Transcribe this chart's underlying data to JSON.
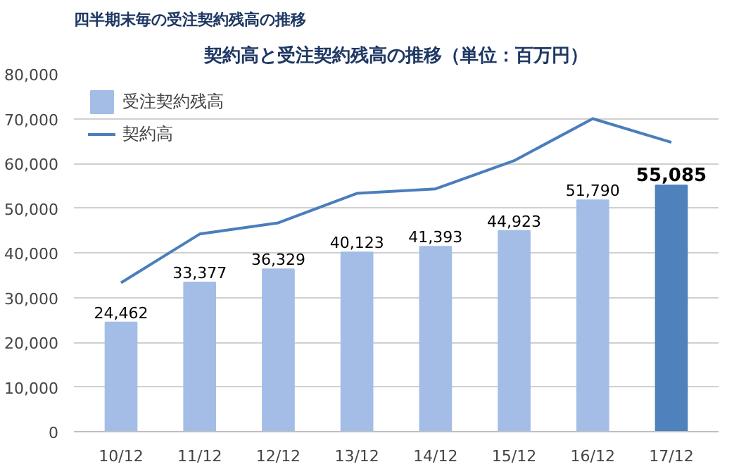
{
  "chart_data": {
    "type": "bar",
    "title": "四半期末毎の受注契約残高の推移",
    "subtitle": "契約高と受注契約残高の推移（単位：百万円）",
    "categories": [
      "10/12",
      "11/12",
      "12/12",
      "13/12",
      "14/12",
      "15/12",
      "16/12",
      "17/12"
    ],
    "series": [
      {
        "name": "受注契約残高",
        "colors": [
          "#a3bde6",
          "#a3bde6",
          "#a3bde6",
          "#a3bde6",
          "#a3bde6",
          "#a3bde6",
          "#a3bde6",
          "#4f81bd"
        ],
        "values": [
          24462,
          33377,
          36329,
          40123,
          41393,
          44923,
          51790,
          55085
        ],
        "value_labels": [
          "24,462",
          "33,377",
          "36,329",
          "40,123",
          "41,393",
          "44,923",
          "51,790",
          "55,085"
        ]
      },
      {
        "name": "契約高",
        "type": "line",
        "color": "#4a7ebb",
        "values": [
          33300,
          44200,
          46700,
          53300,
          54300,
          60600,
          70000,
          64700
        ]
      }
    ],
    "ylim": [
      0,
      80000
    ],
    "yticks": [
      {
        "value": 0,
        "label": "0"
      },
      {
        "value": 10000,
        "label": "10,000"
      },
      {
        "value": 20000,
        "label": "20,000"
      },
      {
        "value": 30000,
        "label": "30,000"
      },
      {
        "value": 40000,
        "label": "40,000"
      },
      {
        "value": 50000,
        "label": "50,000"
      },
      {
        "value": 60000,
        "label": "60,000"
      },
      {
        "value": 70000,
        "label": "70,000"
      },
      {
        "value": 80000,
        "label": "80,000"
      }
    ],
    "grid": "y",
    "legend": "top left"
  }
}
